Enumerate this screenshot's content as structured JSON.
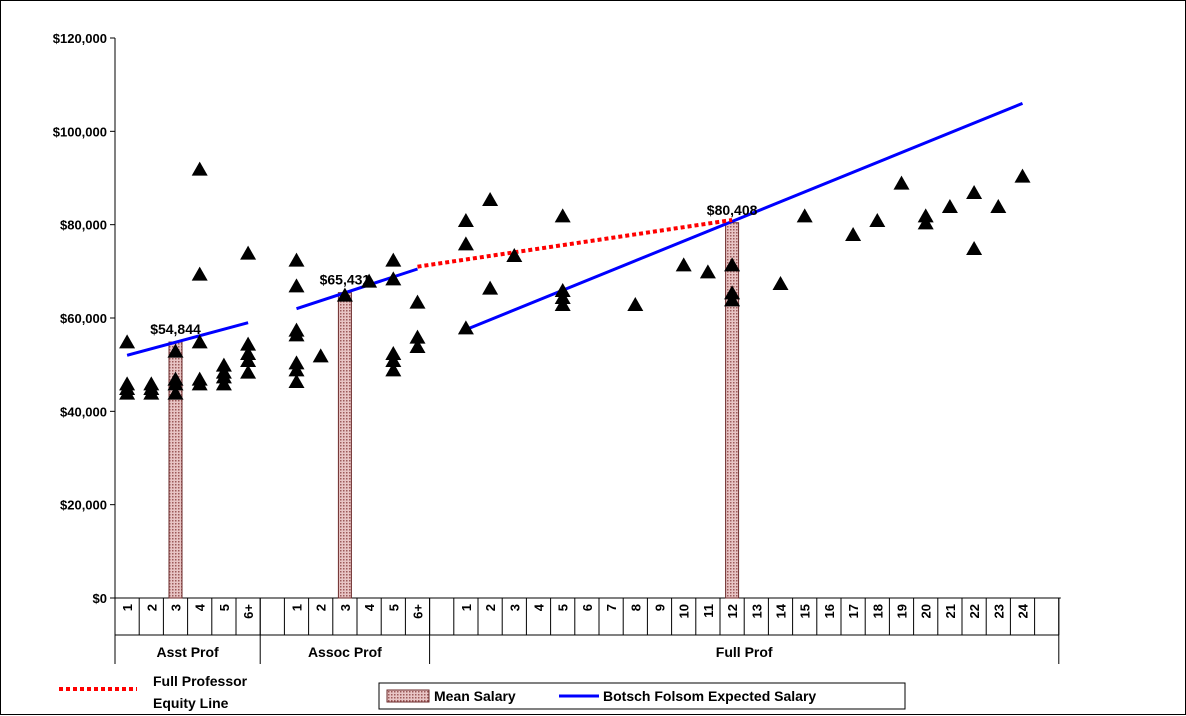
{
  "chart_data": {
    "type": "scatter",
    "title": "",
    "xlabel": "",
    "ylabel": "",
    "ylim": [
      0,
      120000
    ],
    "yticks": [
      "$0",
      "$20,000",
      "$40,000",
      "$60,000",
      "$80,000",
      "$100,000",
      "$120,000"
    ],
    "grid": false,
    "legend_position": "bottom",
    "groups": [
      {
        "name": "Asst Prof",
        "categories": [
          "1",
          "2",
          "3",
          "4",
          "5",
          "6+"
        ]
      },
      {
        "name": "Assoc Prof",
        "categories": [
          "1",
          "2",
          "3",
          "4",
          "5",
          "6+"
        ]
      },
      {
        "name": "Full Prof",
        "categories": [
          "1",
          "2",
          "3",
          "4",
          "5",
          "6",
          "7",
          "8",
          "9",
          "10",
          "11",
          "12",
          "13",
          "14",
          "15",
          "16",
          "17",
          "18",
          "19",
          "20",
          "21",
          "22",
          "23",
          "24"
        ]
      }
    ],
    "series": [
      {
        "name": "Salaries",
        "kind": "scatter",
        "marker": "triangle",
        "color": "#000000",
        "points": {
          "Asst Prof": [
            [
              1,
              55000
            ],
            [
              1,
              46000
            ],
            [
              1,
              45000
            ],
            [
              1,
              44000
            ],
            [
              2,
              46000
            ],
            [
              2,
              45000
            ],
            [
              2,
              44000
            ],
            [
              3,
              53000
            ],
            [
              3,
              47000
            ],
            [
              3,
              46000
            ],
            [
              3,
              44000
            ],
            [
              4,
              92000
            ],
            [
              4,
              69500
            ],
            [
              4,
              55000
            ],
            [
              4,
              47000
            ],
            [
              4,
              46000
            ],
            [
              5,
              50000
            ],
            [
              5,
              48500
            ],
            [
              5,
              47500
            ],
            [
              5,
              46000
            ],
            [
              6,
              74000
            ],
            [
              6,
              54500
            ],
            [
              6,
              52500
            ],
            [
              6,
              51000
            ],
            [
              6,
              48500
            ]
          ],
          "Assoc Prof": [
            [
              1,
              72500
            ],
            [
              1,
              67000
            ],
            [
              1,
              57500
            ],
            [
              1,
              56500
            ],
            [
              1,
              50500
            ],
            [
              1,
              49000
            ],
            [
              1,
              46500
            ],
            [
              2,
              52000
            ],
            [
              3,
              65000
            ],
            [
              4,
              68000
            ],
            [
              5,
              72500
            ],
            [
              5,
              68500
            ],
            [
              5,
              52500
            ],
            [
              5,
              51000
            ],
            [
              5,
              49000
            ],
            [
              6,
              63500
            ],
            [
              6,
              56000
            ],
            [
              6,
              54000
            ]
          ],
          "Full Prof": [
            [
              1,
              81000
            ],
            [
              1,
              76000
            ],
            [
              1,
              58000
            ],
            [
              2,
              85500
            ],
            [
              2,
              66500
            ],
            [
              3,
              73500
            ],
            [
              5,
              82000
            ],
            [
              5,
              66000
            ],
            [
              5,
              64500
            ],
            [
              5,
              63000
            ],
            [
              8,
              63000
            ],
            [
              10,
              71500
            ],
            [
              11,
              70000
            ],
            [
              12,
              71500
            ],
            [
              12,
              65500
            ],
            [
              12,
              64000
            ],
            [
              14,
              67500
            ],
            [
              15,
              82000
            ],
            [
              17,
              78000
            ],
            [
              18,
              81000
            ],
            [
              19,
              89000
            ],
            [
              20,
              82000
            ],
            [
              20,
              80500
            ],
            [
              21,
              84000
            ],
            [
              22,
              87000
            ],
            [
              22,
              75000
            ],
            [
              23,
              84000
            ],
            [
              24,
              90500
            ]
          ]
        }
      },
      {
        "name": "Mean Salary",
        "kind": "bar",
        "color": "#d9a3a3",
        "bars": [
          {
            "group": "Asst Prof",
            "x": 3,
            "value": 54844,
            "label": "$54,844"
          },
          {
            "group": "Assoc Prof",
            "x": 3,
            "value": 65431,
            "label": "$65,431"
          },
          {
            "group": "Full Prof",
            "x": 12,
            "value": 80408,
            "label": "$80,408"
          }
        ]
      },
      {
        "name": "Botsch Folsom Expected Salary",
        "kind": "line",
        "color": "#0000ff",
        "segments": [
          {
            "group": "Asst Prof",
            "from": [
              1,
              52000
            ],
            "to": [
              6,
              59000
            ]
          },
          {
            "group": "Assoc Prof",
            "from": [
              1,
              62000
            ],
            "to": [
              6,
              70500
            ]
          },
          {
            "group": "Full Prof",
            "from": [
              1,
              57500
            ],
            "to": [
              24,
              106000
            ]
          }
        ]
      },
      {
        "name": "Full Professor Equity Line",
        "kind": "dotted-line",
        "color": "#ff0000",
        "from": {
          "group": "Assoc Prof",
          "x": 6,
          "y": 71000
        },
        "to": {
          "group": "Full Prof",
          "x": 12,
          "y": 81000
        }
      }
    ],
    "legend": {
      "equity_line_label_line1": "Full Professor",
      "equity_line_label_line2": "Equity Line",
      "mean_salary_label": "Mean Salary",
      "expected_salary_label": "Botsch Folsom Expected Salary"
    }
  }
}
